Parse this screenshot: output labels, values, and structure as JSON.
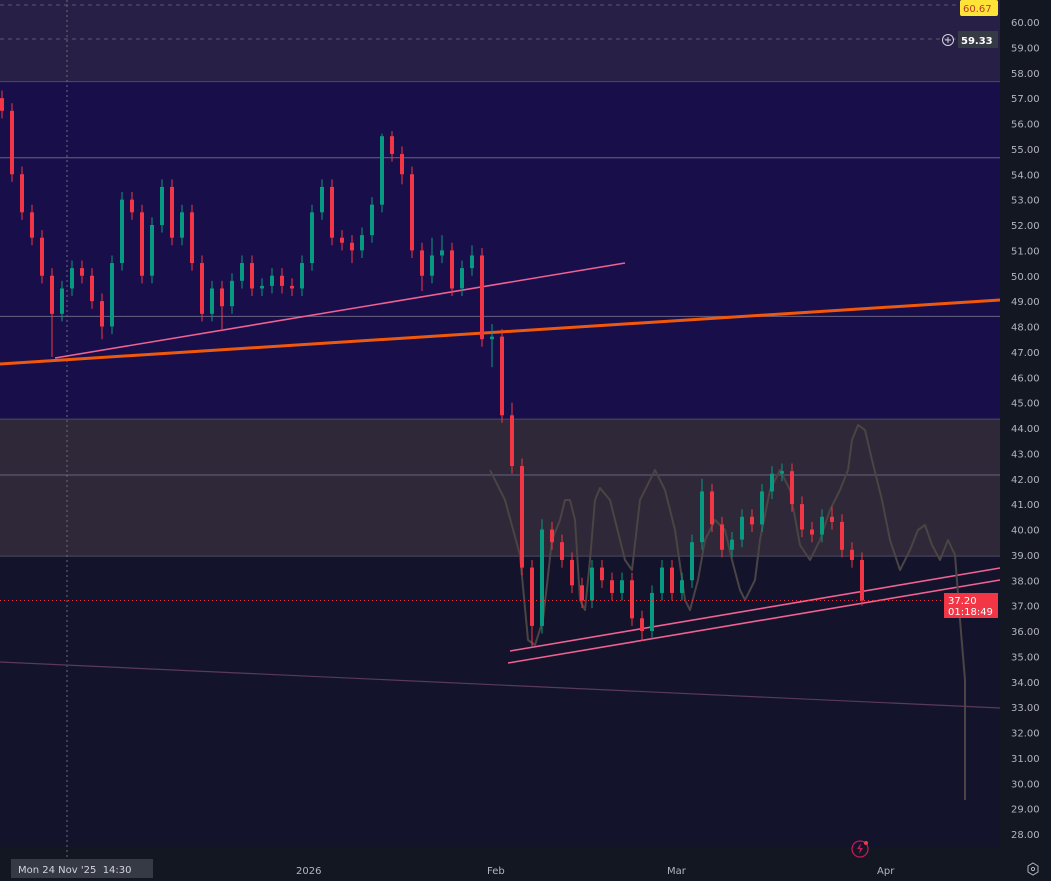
{
  "chart_data": {
    "type": "candlestick",
    "title": "",
    "xlabel": "",
    "ylabel": "",
    "ylim": [
      27.5,
      60.9
    ],
    "grid": false,
    "price_ticks": [
      "60.00",
      "59.00",
      "58.00",
      "57.00",
      "56.00",
      "55.00",
      "54.00",
      "53.00",
      "52.00",
      "51.00",
      "50.00",
      "49.00",
      "48.00",
      "47.00",
      "46.00",
      "45.00",
      "44.00",
      "43.00",
      "42.00",
      "41.00",
      "40.00",
      "39.00",
      "38.00",
      "37.00",
      "36.00",
      "35.00",
      "34.00",
      "33.00",
      "32.00",
      "31.00",
      "30.00",
      "29.00",
      "28.00"
    ],
    "time_ticks": [
      "2026",
      "Feb",
      "Mar",
      "Apr"
    ],
    "crosshair_time": "Mon 24 Nov '25  14:30",
    "current_price": "37.20",
    "countdown": "01:18:49",
    "high_label": "60.67",
    "crosshair_price": "59.33",
    "colors": {
      "up": "#089981",
      "down": "#f23645",
      "current": "#f23645",
      "high_label": "#ffe438",
      "orange_trendline": "#f0580c",
      "pink_trendline": "#f06292",
      "freehand": "#4a4444"
    },
    "zones": [
      {
        "from": 57.65,
        "to": 60.9,
        "color": "#271f46"
      },
      {
        "from": 44.35,
        "to": 57.65,
        "color": "#170e4a"
      },
      {
        "from": 38.95,
        "to": 44.35,
        "color": "#2e2838"
      },
      {
        "from": 27.5,
        "to": 38.95,
        "color": "#13132b"
      }
    ],
    "levels": [
      60.67,
      59.33,
      54.65,
      48.4,
      42.15
    ],
    "candles_ohlc": [
      [
        57.0,
        57.3,
        56.2,
        56.5
      ],
      [
        56.5,
        56.8,
        53.7,
        54
      ],
      [
        54,
        54.3,
        52.2,
        52.5
      ],
      [
        52.5,
        52.8,
        51.2,
        51.5
      ],
      [
        51.5,
        51.8,
        49.7,
        50
      ],
      [
        50,
        50.3,
        46.8,
        48.5
      ],
      [
        48.5,
        49.8,
        48.2,
        49.5
      ],
      [
        49.5,
        50.6,
        49.2,
        50.3
      ],
      [
        50.3,
        50.6,
        49.7,
        50
      ],
      [
        50,
        50.3,
        48.7,
        49
      ],
      [
        49,
        49.3,
        47.5,
        48
      ],
      [
        48,
        50.8,
        47.7,
        50.5
      ],
      [
        50.5,
        53.3,
        50.2,
        53
      ],
      [
        53,
        53.3,
        52.2,
        52.5
      ],
      [
        52.5,
        52.8,
        49.7,
        50
      ],
      [
        50,
        52.3,
        49.7,
        52
      ],
      [
        52,
        53.8,
        51.7,
        53.5
      ],
      [
        53.5,
        53.8,
        51.2,
        51.5
      ],
      [
        51.5,
        52.8,
        51.2,
        52.5
      ],
      [
        52.5,
        52.8,
        50.2,
        50.5
      ],
      [
        50.5,
        50.8,
        48.2,
        48.5
      ],
      [
        48.5,
        49.8,
        48.2,
        49.5
      ],
      [
        49.5,
        49.8,
        47.9,
        48.8
      ],
      [
        48.8,
        50.1,
        48.5,
        49.8
      ],
      [
        49.8,
        50.8,
        49.5,
        50.5
      ],
      [
        50.5,
        50.8,
        49.2,
        49.5
      ],
      [
        49.5,
        49.9,
        49.2,
        49.6
      ],
      [
        49.6,
        50.3,
        49.3,
        50
      ],
      [
        50,
        50.3,
        49.3,
        49.6
      ],
      [
        49.6,
        49.9,
        49.2,
        49.5
      ],
      [
        49.5,
        50.8,
        49.2,
        50.5
      ],
      [
        50.5,
        52.8,
        50.2,
        52.5
      ],
      [
        52.5,
        53.8,
        52.2,
        53.5
      ],
      [
        53.5,
        53.8,
        51.2,
        51.5
      ],
      [
        51.5,
        51.8,
        51,
        51.3
      ],
      [
        51.3,
        51.6,
        50.5,
        51
      ],
      [
        51,
        51.9,
        50.7,
        51.6
      ],
      [
        51.6,
        53.1,
        51.3,
        52.8
      ],
      [
        52.8,
        55.6,
        52.5,
        55.5
      ],
      [
        55.5,
        55.7,
        54.5,
        54.8
      ],
      [
        54.8,
        55.1,
        53.6,
        54
      ],
      [
        54,
        54.3,
        50.7,
        51
      ],
      [
        51,
        51.3,
        49.4,
        50
      ],
      [
        50,
        51.5,
        49.7,
        50.8
      ],
      [
        50.8,
        51.6,
        50.5,
        51
      ],
      [
        51,
        51.3,
        49.2,
        49.5
      ],
      [
        49.5,
        50.6,
        49.2,
        50.3
      ],
      [
        50.3,
        51.2,
        50,
        50.8
      ],
      [
        50.8,
        51.1,
        47.2,
        47.5
      ],
      [
        47.5,
        48.1,
        46.4,
        47.6
      ],
      [
        47.6,
        47.9,
        44.2,
        44.5
      ],
      [
        44.5,
        45,
        42.2,
        42.5
      ],
      [
        42.5,
        42.8,
        38.2,
        38.5
      ],
      [
        38.5,
        38.8,
        35.4,
        36.2
      ],
      [
        36.2,
        40.4,
        35.9,
        40
      ],
      [
        40,
        40.3,
        39.2,
        39.5
      ],
      [
        39.5,
        39.8,
        38.5,
        38.8
      ],
      [
        38.8,
        39.1,
        37.5,
        37.8
      ],
      [
        37.8,
        38.1,
        36.9,
        37.2
      ],
      [
        37.2,
        38.8,
        36.9,
        38.5
      ],
      [
        38.5,
        38.8,
        37.7,
        38
      ],
      [
        38,
        38.3,
        37.2,
        37.5
      ],
      [
        37.5,
        38.3,
        37.2,
        38
      ],
      [
        38,
        38.3,
        36.2,
        36.5
      ],
      [
        36.5,
        36.8,
        35.6,
        36
      ],
      [
        36,
        37.8,
        35.7,
        37.5
      ],
      [
        37.5,
        38.8,
        37.2,
        38.5
      ],
      [
        38.5,
        38.8,
        37.2,
        37.5
      ],
      [
        37.5,
        38.3,
        37.2,
        38
      ],
      [
        38,
        39.8,
        37.7,
        39.5
      ],
      [
        39.5,
        42,
        39.2,
        41.5
      ],
      [
        41.5,
        41.8,
        39.9,
        40.2
      ],
      [
        40.2,
        40.5,
        38.9,
        39.2
      ],
      [
        39.2,
        39.9,
        38.9,
        39.6
      ],
      [
        39.6,
        40.8,
        39.3,
        40.5
      ],
      [
        40.5,
        40.8,
        39.9,
        40.2
      ],
      [
        40.2,
        41.8,
        39.9,
        41.5
      ],
      [
        41.5,
        42.5,
        41.2,
        42.2
      ],
      [
        42.2,
        42.6,
        41.9,
        42.3
      ],
      [
        42.3,
        42.6,
        40.7,
        41
      ],
      [
        41,
        41.3,
        39.7,
        40
      ],
      [
        40,
        40.3,
        39.5,
        39.8
      ],
      [
        39.8,
        40.8,
        39.5,
        40.5
      ],
      [
        40.5,
        40.9,
        40,
        40.3
      ],
      [
        40.3,
        40.6,
        38.9,
        39.2
      ],
      [
        39.2,
        39.5,
        38.5,
        38.8
      ],
      [
        38.8,
        39.1,
        37,
        37.2
      ]
    ]
  },
  "icons": {
    "add_alert": "plus-circle-icon",
    "replay": "lightning-icon",
    "settings": "gear-icon"
  }
}
